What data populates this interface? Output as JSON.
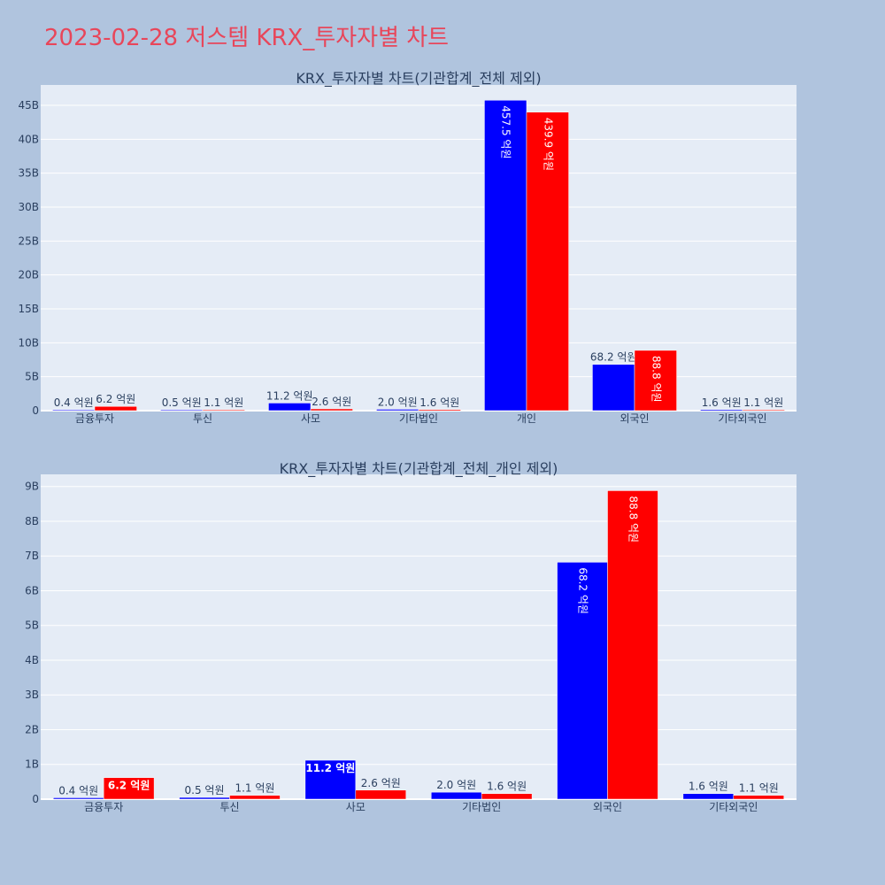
{
  "title": "2023-02-28 저스템 KRX_투자자별 차트",
  "colors": {
    "background": "#b0c4de",
    "plot_bg": "#e5ecf6",
    "gridline": "#ffffff",
    "title": "#e8465a",
    "text": "#2a3f5f",
    "series_1": "#0000ff",
    "series_2": "#ff0000"
  },
  "chart_data": [
    {
      "type": "bar",
      "title": "KRX_투자자별 차트(기관합계_전체 제외)",
      "categories": [
        "금융투자",
        "투신",
        "사모",
        "기타법인",
        "개인",
        "외국인",
        "기타외국인"
      ],
      "series": [
        {
          "color": "#0000ff",
          "values": [
            40000000,
            50000000,
            1120000000,
            200000000,
            45750000000,
            6820000000,
            160000000
          ],
          "labels": [
            "0.4 억원",
            "0.5 억원",
            "11.2 억원",
            "2.0 억원",
            "457.5 억원",
            "68.2 억원",
            "1.6 억원"
          ]
        },
        {
          "color": "#ff0000",
          "values": [
            620000000,
            110000000,
            260000000,
            160000000,
            43990000000,
            8880000000,
            110000000
          ],
          "labels": [
            "6.2 억원",
            "1.1 억원",
            "2.6 억원",
            "1.6 억원",
            "439.9 억원",
            "88.8 억원",
            "1.1 억원"
          ]
        }
      ],
      "ylim": [
        0,
        48000000000
      ],
      "yticks": [
        0,
        5000000000,
        10000000000,
        15000000000,
        20000000000,
        25000000000,
        30000000000,
        35000000000,
        40000000000,
        45000000000
      ],
      "ytick_labels": [
        "0",
        "5B",
        "10B",
        "15B",
        "20B",
        "25B",
        "30B",
        "35B",
        "40B",
        "45B"
      ],
      "grid": true,
      "legend": "none"
    },
    {
      "type": "bar",
      "title": "KRX_투자자별 차트(기관합계_전체_개인 제외)",
      "categories": [
        "금융투자",
        "투신",
        "사모",
        "기타법인",
        "외국인",
        "기타외국인"
      ],
      "series": [
        {
          "color": "#0000ff",
          "values": [
            40000000,
            50000000,
            1120000000,
            200000000,
            6820000000,
            160000000
          ],
          "labels": [
            "0.4 억원",
            "0.5 억원",
            "11.2 억원",
            "2.0 억원",
            "68.2 억원",
            "1.6 억원"
          ]
        },
        {
          "color": "#ff0000",
          "values": [
            620000000,
            110000000,
            260000000,
            160000000,
            8880000000,
            110000000
          ],
          "labels": [
            "6.2 억원",
            "1.1 억원",
            "2.6 억원",
            "1.6 억원",
            "88.8 억원",
            "1.1 억원"
          ]
        }
      ],
      "ylim": [
        0,
        9350000000
      ],
      "yticks": [
        0,
        1000000000,
        2000000000,
        3000000000,
        4000000000,
        5000000000,
        6000000000,
        7000000000,
        8000000000,
        9000000000
      ],
      "ytick_labels": [
        "0",
        "1B",
        "2B",
        "3B",
        "4B",
        "5B",
        "6B",
        "7B",
        "8B",
        "9B"
      ],
      "grid": true,
      "legend": "none"
    }
  ]
}
